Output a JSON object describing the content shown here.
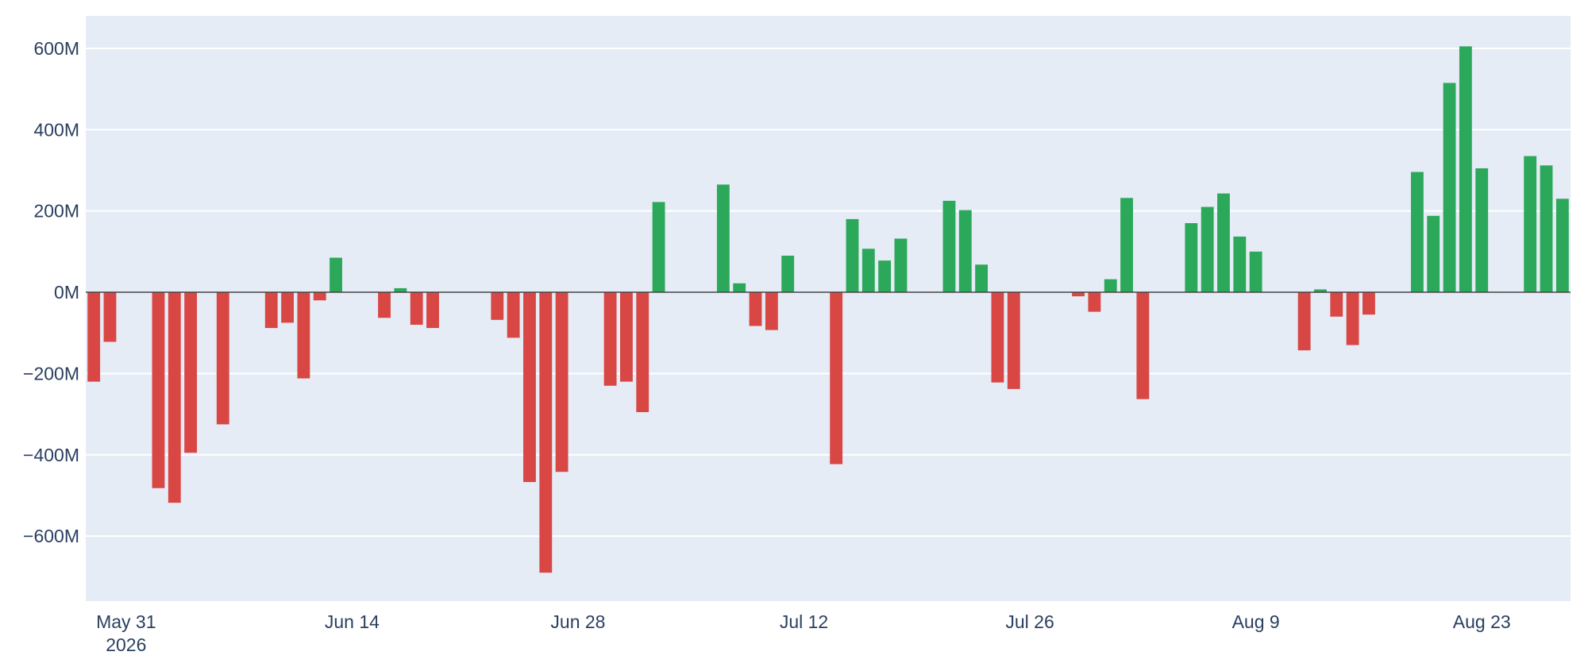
{
  "chart_data": {
    "type": "bar",
    "x_start": "2026-05-29",
    "x_end": "2026-08-27",
    "ylim": [
      -760,
      680
    ],
    "y_unit_suffix": "M",
    "yticks": [
      -600,
      -400,
      -200,
      0,
      200,
      400,
      600
    ],
    "ytick_labels": [
      "−600M",
      "−400M",
      "−200M",
      "0M",
      "200M",
      "400M",
      "600M"
    ],
    "xticks": [
      {
        "date": "2026-05-31",
        "label": "May 31",
        "sublabel": "2026"
      },
      {
        "date": "2026-06-14",
        "label": "Jun 14",
        "sublabel": ""
      },
      {
        "date": "2026-06-28",
        "label": "Jun 28",
        "sublabel": ""
      },
      {
        "date": "2026-07-12",
        "label": "Jul 12",
        "sublabel": ""
      },
      {
        "date": "2026-07-26",
        "label": "Jul 26",
        "sublabel": ""
      },
      {
        "date": "2026-08-09",
        "label": "Aug 9",
        "sublabel": ""
      },
      {
        "date": "2026-08-23",
        "label": "Aug 23",
        "sublabel": ""
      }
    ],
    "grid": true,
    "colors": {
      "positive": "#2ca85a",
      "negative": "#d94745",
      "plot_bg": "#e5ecf6",
      "grid": "#ffffff",
      "zeroline": "#444444",
      "text": "#2a3f5f"
    },
    "bars": [
      {
        "date": "2026-05-29",
        "value": -220
      },
      {
        "date": "2026-05-30",
        "value": -122
      },
      {
        "date": "2026-06-02",
        "value": -482
      },
      {
        "date": "2026-06-03",
        "value": -518
      },
      {
        "date": "2026-06-04",
        "value": -395
      },
      {
        "date": "2026-06-06",
        "value": -325
      },
      {
        "date": "2026-06-09",
        "value": -88
      },
      {
        "date": "2026-06-10",
        "value": -75
      },
      {
        "date": "2026-06-11",
        "value": -212
      },
      {
        "date": "2026-06-12",
        "value": -20
      },
      {
        "date": "2026-06-13",
        "value": 85
      },
      {
        "date": "2026-06-16",
        "value": -63
      },
      {
        "date": "2026-06-17",
        "value": 10
      },
      {
        "date": "2026-06-18",
        "value": -80
      },
      {
        "date": "2026-06-19",
        "value": -88
      },
      {
        "date": "2026-06-23",
        "value": -68
      },
      {
        "date": "2026-06-24",
        "value": -112
      },
      {
        "date": "2026-06-25",
        "value": -467
      },
      {
        "date": "2026-06-26",
        "value": -690
      },
      {
        "date": "2026-06-27",
        "value": -442
      },
      {
        "date": "2026-06-30",
        "value": -230
      },
      {
        "date": "2026-07-01",
        "value": -220
      },
      {
        "date": "2026-07-02",
        "value": -295
      },
      {
        "date": "2026-07-03",
        "value": 222
      },
      {
        "date": "2026-07-07",
        "value": 265
      },
      {
        "date": "2026-07-08",
        "value": 22
      },
      {
        "date": "2026-07-09",
        "value": -83
      },
      {
        "date": "2026-07-10",
        "value": -93
      },
      {
        "date": "2026-07-11",
        "value": 90
      },
      {
        "date": "2026-07-14",
        "value": -423
      },
      {
        "date": "2026-07-15",
        "value": 180
      },
      {
        "date": "2026-07-16",
        "value": 107
      },
      {
        "date": "2026-07-17",
        "value": 78
      },
      {
        "date": "2026-07-18",
        "value": 132
      },
      {
        "date": "2026-07-21",
        "value": 225
      },
      {
        "date": "2026-07-22",
        "value": 202
      },
      {
        "date": "2026-07-23",
        "value": 68
      },
      {
        "date": "2026-07-24",
        "value": -222
      },
      {
        "date": "2026-07-25",
        "value": -238
      },
      {
        "date": "2026-07-29",
        "value": -10
      },
      {
        "date": "2026-07-30",
        "value": -48
      },
      {
        "date": "2026-07-31",
        "value": 32
      },
      {
        "date": "2026-08-01",
        "value": 232
      },
      {
        "date": "2026-08-02",
        "value": -263
      },
      {
        "date": "2026-08-05",
        "value": 170
      },
      {
        "date": "2026-08-06",
        "value": 210
      },
      {
        "date": "2026-08-07",
        "value": 243
      },
      {
        "date": "2026-08-08",
        "value": 137
      },
      {
        "date": "2026-08-09",
        "value": 100
      },
      {
        "date": "2026-08-12",
        "value": -143
      },
      {
        "date": "2026-08-13",
        "value": 7
      },
      {
        "date": "2026-08-14",
        "value": -60
      },
      {
        "date": "2026-08-15",
        "value": -130
      },
      {
        "date": "2026-08-16",
        "value": -55
      },
      {
        "date": "2026-08-19",
        "value": 296
      },
      {
        "date": "2026-08-20",
        "value": 188
      },
      {
        "date": "2026-08-21",
        "value": 515
      },
      {
        "date": "2026-08-22",
        "value": 605
      },
      {
        "date": "2026-08-23",
        "value": 305
      },
      {
        "date": "2026-08-26",
        "value": 335
      },
      {
        "date": "2026-08-27",
        "value": 312
      },
      {
        "date": "2026-08-28",
        "value": 230
      }
    ]
  }
}
